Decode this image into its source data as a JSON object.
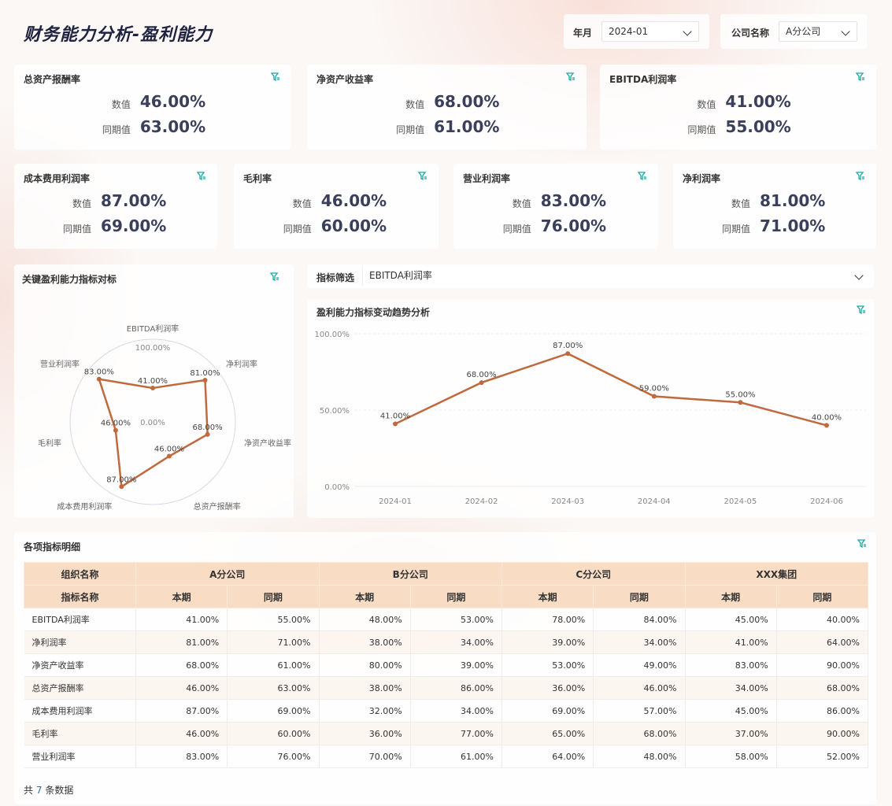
{
  "header": {
    "title": "财务能力分析-盈利能力",
    "year_label": "年月",
    "year_value": "2024-01",
    "company_label": "公司名称",
    "company_value": "A分公司"
  },
  "kpi_labels": {
    "value": "数值",
    "prior": "同期值"
  },
  "kpis_row1": [
    {
      "title": "总资产报酬率",
      "value": "46.00%",
      "prior": "63.00%"
    },
    {
      "title": "净资产收益率",
      "value": "68.00%",
      "prior": "61.00%"
    },
    {
      "title": "EBITDA利润率",
      "value": "41.00%",
      "prior": "55.00%"
    }
  ],
  "kpis_row2": [
    {
      "title": "成本费用利润率",
      "value": "87.00%",
      "prior": "69.00%"
    },
    {
      "title": "毛利率",
      "value": "46.00%",
      "prior": "60.00%"
    },
    {
      "title": "营业利润率",
      "value": "83.00%",
      "prior": "76.00%"
    },
    {
      "title": "净利润率",
      "value": "81.00%",
      "prior": "71.00%"
    }
  ],
  "radar_panel": {
    "title": "关键盈利能力指标对标"
  },
  "indicator_filter": {
    "label": "指标筛选",
    "value": "EBITDA利润率"
  },
  "trend_panel": {
    "title": "盈利能力指标变动趋势分析"
  },
  "chart_data": [
    {
      "type": "radar",
      "title": "关键盈利能力指标对标",
      "categories": [
        "EBITDA利润率",
        "净利润率",
        "净资产收益率",
        "总资产报酬率",
        "成本费用利润率",
        "毛利率",
        "营业利润率"
      ],
      "values": [
        41,
        81,
        68,
        46,
        87,
        46,
        83
      ],
      "value_labels": [
        "41.00%",
        "81.00%",
        "68.00%",
        "46.00%",
        "87.00%",
        "46.00%",
        "83.00%"
      ],
      "scale_labels": [
        "100.00%",
        "0.00%"
      ],
      "ylim": [
        0,
        100
      ],
      "color": "#c0693f"
    },
    {
      "type": "line",
      "title": "盈利能力指标变动趋势分析",
      "categories": [
        "2024-01",
        "2024-02",
        "2024-03",
        "2024-04",
        "2024-05",
        "2024-06"
      ],
      "values": [
        41,
        68,
        87,
        59,
        55,
        40
      ],
      "value_labels": [
        "41.00%",
        "68.00%",
        "87.00%",
        "59.00%",
        "55.00%",
        "40.00%"
      ],
      "yticks": [
        "0.00%",
        "50.00%",
        "100.00%"
      ],
      "ylim": [
        0,
        100
      ],
      "color": "#c0693f"
    }
  ],
  "detail": {
    "title": "各项指标明细",
    "org_header": "组织名称",
    "metric_header": "指标名称",
    "companies": [
      "A分公司",
      "B分公司",
      "C分公司",
      "XXX集团"
    ],
    "period_labels": [
      "本期",
      "同期"
    ],
    "rows": [
      {
        "name": "EBITDA利润率",
        "cells": [
          "41.00%",
          "55.00%",
          "48.00%",
          "53.00%",
          "78.00%",
          "84.00%",
          "45.00%",
          "40.00%"
        ]
      },
      {
        "name": "净利润率",
        "cells": [
          "81.00%",
          "71.00%",
          "38.00%",
          "34.00%",
          "39.00%",
          "34.00%",
          "41.00%",
          "64.00%"
        ]
      },
      {
        "name": "净资产收益率",
        "cells": [
          "68.00%",
          "61.00%",
          "80.00%",
          "39.00%",
          "53.00%",
          "49.00%",
          "83.00%",
          "90.00%"
        ]
      },
      {
        "name": "总资产报酬率",
        "cells": [
          "46.00%",
          "63.00%",
          "38.00%",
          "86.00%",
          "36.00%",
          "46.00%",
          "34.00%",
          "68.00%"
        ]
      },
      {
        "name": "成本费用利润率",
        "cells": [
          "87.00%",
          "69.00%",
          "32.00%",
          "34.00%",
          "69.00%",
          "57.00%",
          "45.00%",
          "86.00%"
        ]
      },
      {
        "name": "毛利率",
        "cells": [
          "46.00%",
          "60.00%",
          "36.00%",
          "77.00%",
          "65.00%",
          "68.00%",
          "37.00%",
          "90.00%"
        ]
      },
      {
        "name": "营业利润率",
        "cells": [
          "83.00%",
          "76.00%",
          "70.00%",
          "61.00%",
          "64.00%",
          "48.00%",
          "58.00%",
          "52.00%"
        ]
      }
    ],
    "footer_prefix": "共",
    "footer_count": "7",
    "footer_suffix": "条数据"
  },
  "colors": {
    "accent": "#c0693f",
    "header_bg": "#f9dcc4",
    "filter_icon": "#1aa6a6",
    "title": "#1f2340"
  }
}
